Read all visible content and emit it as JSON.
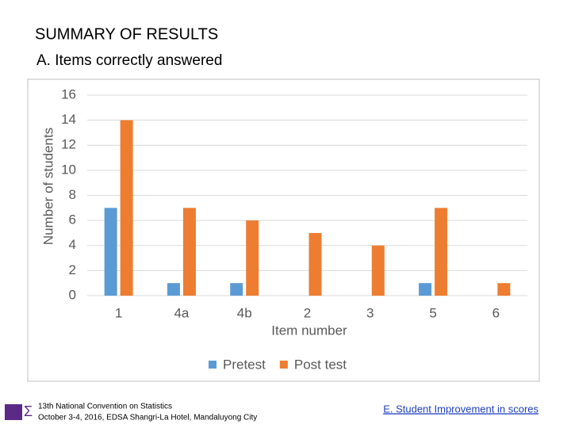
{
  "header": {
    "title": "SUMMARY OF RESULTS",
    "subtitle": "A.  Items correctly answered"
  },
  "chart_data": {
    "type": "bar",
    "x_label": "Item number",
    "y_label": "Number of students",
    "categories": [
      "1",
      "4a",
      "4b",
      "2",
      "3",
      "5",
      "6"
    ],
    "series": [
      {
        "name": "Pretest",
        "color": "#5b9bd5",
        "values": [
          7,
          1,
          1,
          0,
          0,
          1,
          0
        ]
      },
      {
        "name": "Post test",
        "color": "#ed7d31",
        "values": [
          14,
          7,
          6,
          5,
          4,
          7,
          1
        ]
      }
    ],
    "ylim": [
      0,
      16
    ],
    "yticks": [
      0,
      2,
      4,
      6,
      8,
      10,
      12,
      14,
      16
    ],
    "grid": true,
    "legend": "bottom"
  },
  "footer": {
    "line1": "13th National Convention on Statistics",
    "line2": "October 3-4, 2016, EDSA Shangri-La Hotel, Mandaluyong City",
    "link": "E.  Student Improvement in scores"
  }
}
